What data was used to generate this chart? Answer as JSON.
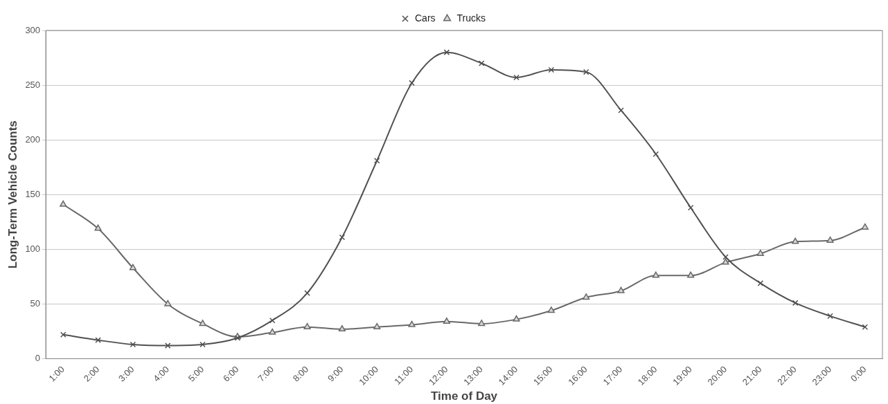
{
  "chart_data": {
    "type": "line",
    "xlabel": "Time of Day",
    "ylabel": "Long-Term Vehicle Counts",
    "categories": [
      "1:00",
      "2:00",
      "3:00",
      "4:00",
      "5:00",
      "6:00",
      "7:00",
      "8:00",
      "9:00",
      "10:00",
      "11:00",
      "12:00",
      "13:00",
      "14:00",
      "15:00",
      "16:00",
      "17:00",
      "18:00",
      "19:00",
      "20:00",
      "21:00",
      "22:00",
      "23:00",
      "0:00"
    ],
    "series": [
      {
        "name": "Cars",
        "color": "#505050",
        "marker": "cross",
        "values": [
          22,
          17,
          13,
          12,
          13,
          19,
          35,
          60,
          111,
          181,
          252,
          280,
          270,
          257,
          264,
          262,
          227,
          187,
          138,
          93,
          69,
          51,
          39,
          29
        ]
      },
      {
        "name": "Trucks",
        "color": "#686868",
        "marker": "triangle",
        "values": [
          141,
          119,
          83,
          50,
          32,
          20,
          24,
          29,
          27,
          29,
          31,
          34,
          32,
          36,
          44,
          56,
          62,
          76,
          76,
          88,
          96,
          107,
          108,
          120
        ]
      }
    ],
    "ylim": [
      0,
      300
    ],
    "yticks": [
      0,
      50,
      100,
      150,
      200,
      250,
      300
    ],
    "grid": "y",
    "legend": "top",
    "line_style": "solid"
  }
}
